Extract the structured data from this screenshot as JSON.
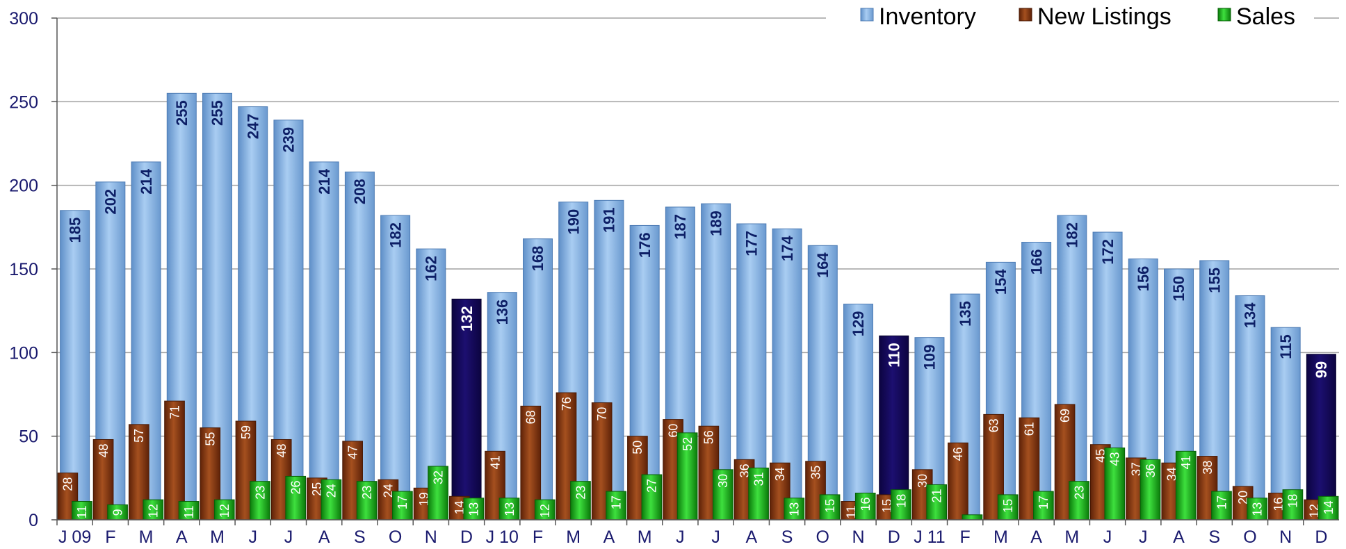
{
  "colors": {
    "inventory": "#8cb8e6",
    "inventory_highlight": "#14095c",
    "new_listings": "#8a3a12",
    "sales": "#1eb81e",
    "axis_text": "#1a1a6e",
    "grid": "#a0a0a0"
  },
  "chart_data": {
    "type": "bar",
    "ylim": [
      0,
      300
    ],
    "yticks": [
      0,
      50,
      100,
      150,
      200,
      250,
      300
    ],
    "grid": true,
    "legend_position": "top-right",
    "categories": [
      "J 09",
      "F",
      "M",
      "A",
      "M",
      "J",
      "J",
      "A",
      "S",
      "O",
      "N",
      "D",
      "J 10",
      "F",
      "M",
      "A",
      "M",
      "J",
      "J",
      "A",
      "S",
      "O",
      "N",
      "D",
      "J 11",
      "F",
      "M",
      "A",
      "M",
      "J",
      "J",
      "A",
      "S",
      "O",
      "N",
      "D"
    ],
    "highlight_indices": [
      11,
      23,
      35
    ],
    "series": [
      {
        "name": "Inventory",
        "values": [
          185,
          202,
          214,
          255,
          255,
          247,
          239,
          214,
          208,
          182,
          162,
          132,
          136,
          168,
          190,
          191,
          176,
          187,
          189,
          177,
          174,
          164,
          129,
          110,
          109,
          135,
          154,
          166,
          182,
          172,
          156,
          150,
          155,
          134,
          115,
          99
        ]
      },
      {
        "name": "New Listings",
        "values": [
          28,
          48,
          57,
          71,
          55,
          59,
          48,
          25,
          47,
          24,
          19,
          14,
          41,
          68,
          76,
          70,
          50,
          60,
          56,
          36,
          34,
          35,
          11,
          15,
          30,
          46,
          63,
          61,
          69,
          45,
          37,
          34,
          38,
          20,
          16,
          12
        ]
      },
      {
        "name": "Sales",
        "values": [
          11,
          9,
          12,
          11,
          12,
          23,
          26,
          24,
          23,
          17,
          32,
          13,
          13,
          12,
          23,
          17,
          27,
          52,
          30,
          31,
          13,
          15,
          16,
          18,
          21,
          3,
          15,
          17,
          23,
          43,
          36,
          41,
          17,
          13,
          18,
          14
        ]
      }
    ]
  }
}
